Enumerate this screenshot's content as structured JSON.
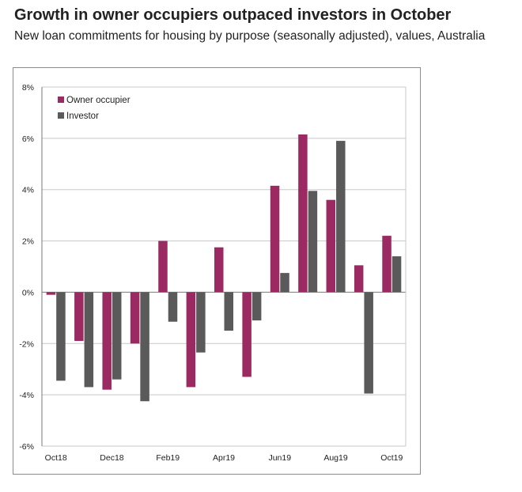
{
  "title": "Growth in owner occupiers outpaced investors in October",
  "subtitle": "New loan commitments for housing by purpose (seasonally adjusted), values, Australia",
  "chart_data": {
    "type": "bar",
    "categories": [
      "Oct18",
      "Nov18",
      "Dec18",
      "Jan19",
      "Feb19",
      "Mar19",
      "Apr19",
      "May19",
      "Jun19",
      "Jul19",
      "Aug19",
      "Sep19",
      "Oct19"
    ],
    "tick_labels": [
      "Oct18",
      "",
      "Dec18",
      "",
      "Feb19",
      "",
      "Apr19",
      "",
      "Jun19",
      "",
      "Aug19",
      "",
      "Oct19"
    ],
    "series": [
      {
        "name": "Owner occupier",
        "color": "#9b2a62",
        "values": [
          -0.1,
          -1.9,
          -3.8,
          -2.0,
          2.0,
          -3.7,
          1.75,
          -3.3,
          4.15,
          6.15,
          3.6,
          1.05,
          2.2
        ]
      },
      {
        "name": "Investor",
        "color": "#5a5a5a",
        "values": [
          -3.45,
          -3.7,
          -3.4,
          -4.25,
          -1.15,
          -2.35,
          -1.5,
          -1.1,
          0.75,
          3.95,
          5.9,
          -3.95,
          1.4
        ]
      }
    ],
    "ylim": [
      -6,
      8
    ],
    "yticks": [
      -6,
      -4,
      -2,
      0,
      2,
      4,
      6,
      8
    ],
    "ytick_suffix": "%",
    "grid": true,
    "legend_position": "top-left"
  }
}
